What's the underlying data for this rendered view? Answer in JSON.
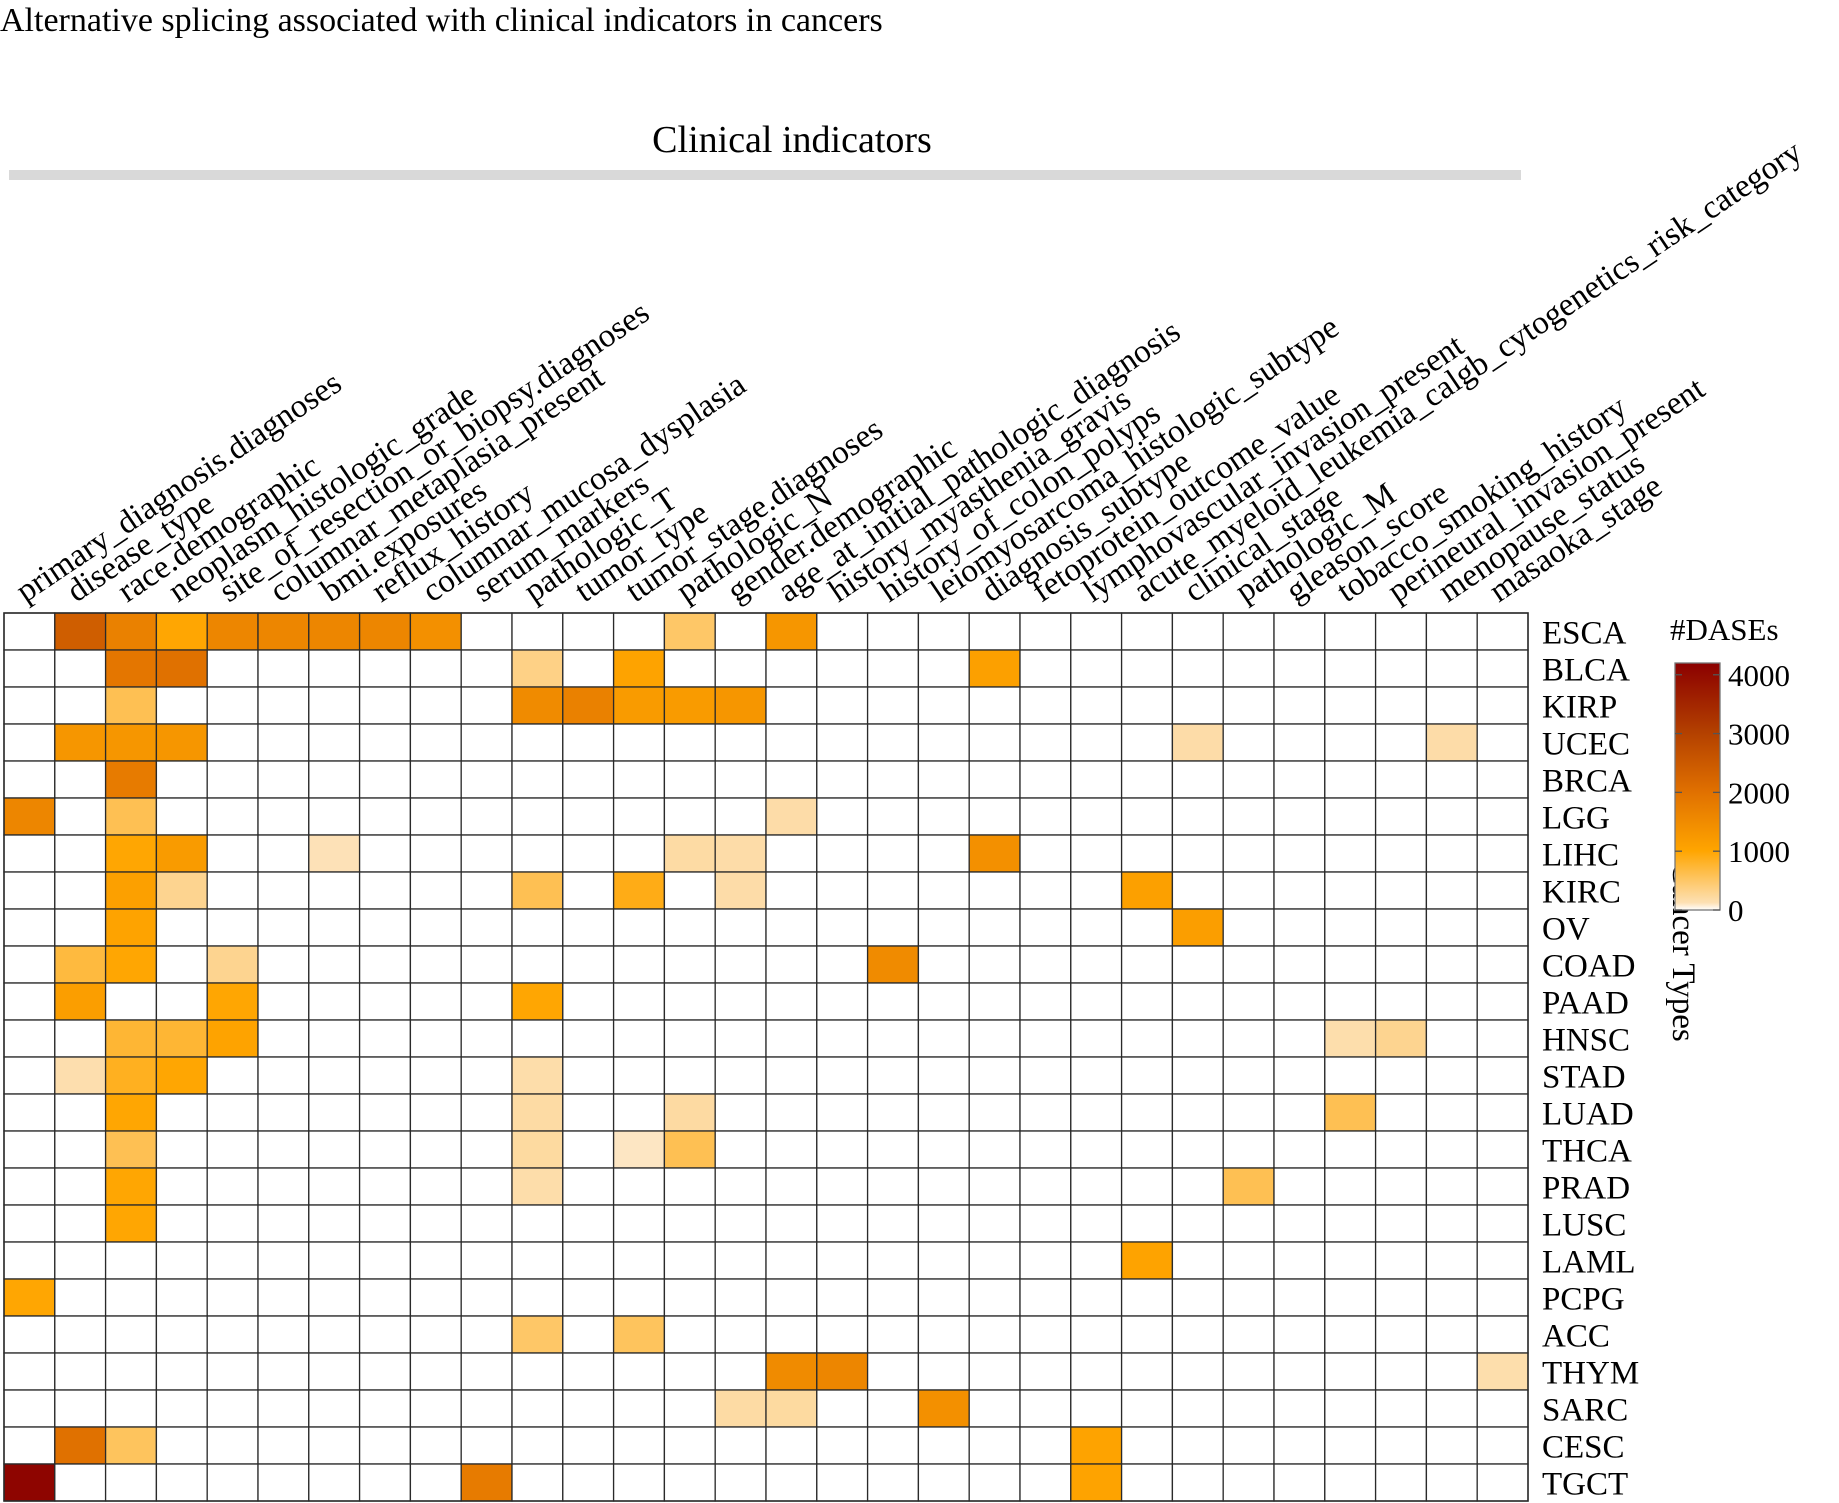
{
  "chart_data": {
    "type": "heatmap",
    "title": "Alternative splicing associated with clinical indicators in cancers",
    "column_group_label": "Clinical indicators",
    "row_axis_label": "Cancer Types",
    "legend": {
      "title": "#DASEs",
      "ticks": [
        0,
        1000,
        2000,
        3000,
        4000
      ],
      "range": [
        0,
        4200
      ],
      "colors": [
        "#ffffff",
        "#fde0b3",
        "#ffa500",
        "#e07000",
        "#b34000",
        "#8b0000"
      ]
    },
    "columns": [
      "primary_diagnosis.diagnoses",
      "disease_type",
      "race.demographic",
      "neoplasm_histologic_grade",
      "site_of_resection_or_biopsy.diagnoses",
      "columnar_metaplasia_present",
      "bmi.exposures",
      "reflux_history",
      "columnar_mucosa_dysplasia",
      "serum_markers",
      "pathologic_T",
      "tumor_type",
      "tumor_stage.diagnoses",
      "pathologic_N",
      "gender.demographic",
      "age_at_initial_pathologic_diagnosis",
      "history_myasthenia_gravis",
      "history_of_colon_polyps",
      "leiomyosarcoma_histologic_subtype",
      "diagnosis_subtype",
      "fetoprotein_outcome_value",
      "lymphovascular_invasion_present",
      "acute_myeloid_leukemia_calgb_cytogenetics_risk_category",
      "clinical_stage",
      "pathologic_M",
      "gleason_score",
      "tobacco_smoking_history",
      "perineural_invasion_present",
      "menopause_status",
      "masaoka_stage"
    ],
    "rows": [
      "ESCA",
      "BLCA",
      "KIRP",
      "UCEC",
      "BRCA",
      "LGG",
      "LIHC",
      "KIRC",
      "OV",
      "COAD",
      "PAAD",
      "HNSC",
      "STAD",
      "LUAD",
      "THCA",
      "PRAD",
      "LUSC",
      "LAML",
      "PCPG",
      "ACC",
      "THYM",
      "SARC",
      "CESC",
      "TGCT"
    ],
    "values": [
      [
        0,
        2400,
        1700,
        1000,
        1600,
        1600,
        1600,
        1600,
        1400,
        0,
        0,
        0,
        0,
        500,
        0,
        1300,
        0,
        0,
        0,
        0,
        0,
        0,
        0,
        0,
        0,
        0,
        0,
        0,
        0,
        0
      ],
      [
        0,
        0,
        1900,
        2000,
        0,
        0,
        0,
        0,
        0,
        0,
        350,
        0,
        1050,
        0,
        0,
        0,
        0,
        0,
        0,
        1100,
        0,
        0,
        0,
        0,
        0,
        0,
        0,
        0,
        0,
        0
      ],
      [
        0,
        0,
        600,
        0,
        0,
        0,
        0,
        0,
        0,
        0,
        1500,
        1700,
        1200,
        1200,
        1300,
        0,
        0,
        0,
        0,
        0,
        0,
        0,
        0,
        0,
        0,
        0,
        0,
        0,
        0,
        0
      ],
      [
        0,
        1300,
        1300,
        1300,
        0,
        0,
        0,
        0,
        0,
        0,
        0,
        0,
        0,
        0,
        0,
        0,
        0,
        0,
        0,
        0,
        0,
        0,
        0,
        180,
        0,
        0,
        0,
        0,
        180,
        0
      ],
      [
        0,
        0,
        1800,
        0,
        0,
        0,
        0,
        0,
        0,
        0,
        0,
        0,
        0,
        0,
        0,
        0,
        0,
        0,
        0,
        0,
        0,
        0,
        0,
        0,
        0,
        0,
        0,
        0,
        0,
        0
      ],
      [
        1600,
        0,
        600,
        0,
        0,
        0,
        0,
        0,
        0,
        0,
        0,
        0,
        0,
        0,
        0,
        180,
        0,
        0,
        0,
        0,
        0,
        0,
        0,
        0,
        0,
        0,
        0,
        0,
        0,
        0
      ],
      [
        0,
        0,
        1000,
        1200,
        0,
        0,
        120,
        0,
        0,
        0,
        0,
        0,
        0,
        200,
        180,
        0,
        0,
        0,
        0,
        1400,
        0,
        0,
        0,
        0,
        0,
        0,
        0,
        0,
        0,
        0
      ],
      [
        0,
        0,
        1100,
        300,
        0,
        0,
        0,
        0,
        0,
        0,
        600,
        0,
        900,
        0,
        180,
        0,
        0,
        0,
        0,
        0,
        0,
        0,
        1100,
        0,
        0,
        0,
        0,
        0,
        0,
        0
      ],
      [
        0,
        0,
        1050,
        0,
        0,
        0,
        0,
        0,
        0,
        0,
        0,
        0,
        0,
        0,
        0,
        0,
        0,
        0,
        0,
        0,
        0,
        0,
        0,
        1150,
        0,
        0,
        0,
        0,
        0,
        0
      ],
      [
        0,
        700,
        1000,
        0,
        300,
        0,
        0,
        0,
        0,
        0,
        0,
        0,
        0,
        0,
        0,
        0,
        0,
        1500,
        0,
        0,
        0,
        0,
        0,
        0,
        0,
        0,
        0,
        0,
        0,
        0
      ],
      [
        0,
        1150,
        0,
        0,
        1000,
        0,
        0,
        0,
        0,
        0,
        1000,
        0,
        0,
        0,
        0,
        0,
        0,
        0,
        0,
        0,
        0,
        0,
        0,
        0,
        0,
        0,
        0,
        0,
        0,
        0
      ],
      [
        0,
        0,
        750,
        750,
        1050,
        0,
        0,
        0,
        0,
        0,
        0,
        0,
        0,
        0,
        0,
        0,
        0,
        0,
        0,
        0,
        0,
        0,
        0,
        0,
        0,
        0,
        160,
        300,
        0,
        0
      ],
      [
        0,
        150,
        850,
        1000,
        0,
        0,
        0,
        0,
        0,
        0,
        170,
        0,
        0,
        0,
        0,
        0,
        0,
        0,
        0,
        0,
        0,
        0,
        0,
        0,
        0,
        0,
        0,
        0,
        0,
        0
      ],
      [
        0,
        0,
        1000,
        0,
        0,
        0,
        0,
        0,
        0,
        0,
        200,
        0,
        0,
        210,
        0,
        0,
        0,
        0,
        0,
        0,
        0,
        0,
        0,
        0,
        0,
        0,
        600,
        0,
        0,
        0
      ],
      [
        0,
        0,
        600,
        0,
        0,
        0,
        0,
        0,
        0,
        0,
        220,
        0,
        100,
        600,
        0,
        0,
        0,
        0,
        0,
        0,
        0,
        0,
        0,
        0,
        0,
        0,
        0,
        0,
        0,
        0
      ],
      [
        0,
        0,
        1000,
        0,
        0,
        0,
        0,
        0,
        0,
        0,
        170,
        0,
        0,
        0,
        0,
        0,
        0,
        0,
        0,
        0,
        0,
        0,
        0,
        0,
        600,
        0,
        0,
        0,
        0,
        0
      ],
      [
        0,
        0,
        1000,
        0,
        0,
        0,
        0,
        0,
        0,
        0,
        0,
        0,
        0,
        0,
        0,
        0,
        0,
        0,
        0,
        0,
        0,
        0,
        0,
        0,
        0,
        0,
        0,
        0,
        0,
        0
      ],
      [
        0,
        0,
        0,
        0,
        0,
        0,
        0,
        0,
        0,
        0,
        0,
        0,
        0,
        0,
        0,
        0,
        0,
        0,
        0,
        0,
        0,
        0,
        1050,
        0,
        0,
        0,
        0,
        0,
        0,
        0
      ],
      [
        1000,
        0,
        0,
        0,
        0,
        0,
        0,
        0,
        0,
        0,
        0,
        0,
        0,
        0,
        0,
        0,
        0,
        0,
        0,
        0,
        0,
        0,
        0,
        0,
        0,
        0,
        0,
        0,
        0,
        0
      ],
      [
        0,
        0,
        0,
        0,
        0,
        0,
        0,
        0,
        0,
        0,
        500,
        0,
        550,
        0,
        0,
        0,
        0,
        0,
        0,
        0,
        0,
        0,
        0,
        0,
        0,
        0,
        0,
        0,
        0,
        0
      ],
      [
        0,
        0,
        0,
        0,
        0,
        0,
        0,
        0,
        0,
        0,
        0,
        0,
        0,
        0,
        0,
        1500,
        1600,
        0,
        0,
        0,
        0,
        0,
        0,
        0,
        0,
        0,
        0,
        0,
        0,
        160
      ],
      [
        0,
        0,
        0,
        0,
        0,
        0,
        0,
        0,
        0,
        0,
        0,
        0,
        0,
        0,
        200,
        220,
        0,
        0,
        1400,
        0,
        0,
        0,
        0,
        0,
        0,
        0,
        0,
        0,
        0,
        0
      ],
      [
        0,
        2000,
        550,
        0,
        0,
        0,
        0,
        0,
        0,
        0,
        0,
        0,
        0,
        0,
        0,
        0,
        0,
        0,
        0,
        0,
        0,
        1050,
        0,
        0,
        0,
        0,
        0,
        0,
        0,
        0
      ],
      [
        4100,
        0,
        0,
        0,
        0,
        0,
        0,
        0,
        0,
        1800,
        0,
        0,
        0,
        0,
        0,
        0,
        0,
        0,
        0,
        0,
        0,
        1050,
        0,
        0,
        0,
        0,
        0,
        0,
        0,
        0
      ]
    ]
  }
}
